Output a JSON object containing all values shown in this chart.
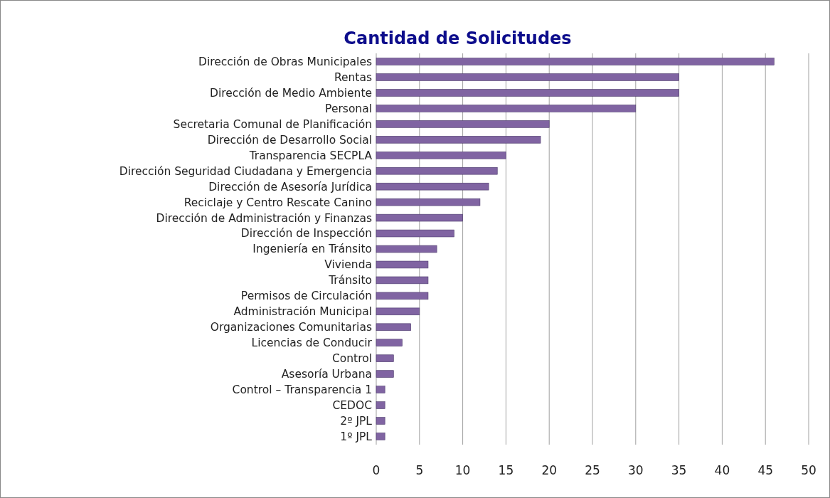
{
  "chart_data": {
    "type": "bar",
    "orientation": "horizontal",
    "title": "Cantidad de Solicitudes",
    "categories": [
      "Dirección de Obras Municipales",
      "Rentas",
      "Dirección de Medio Ambiente",
      "Personal",
      "Secretaria Comunal de Planificación",
      "Dirección de Desarrollo Social",
      "Transparencia SECPLA",
      "Dirección Seguridad Ciudadana y Emergencia",
      "Dirección de Asesoría Jurídica",
      "Reciclaje y Centro Rescate Canino",
      "Dirección de Administración y Finanzas",
      "Dirección de Inspección",
      "Ingeniería en Tránsito",
      "Vivienda",
      "Tránsito",
      "Permisos de Circulación",
      "Administración Municipal",
      "Organizaciones Comunitarias",
      "Licencias de Conducir",
      "Control",
      "Asesoría Urbana",
      "Control – Transparencia 1",
      "CEDOC",
      "2º JPL",
      "1º JPL"
    ],
    "values": [
      46,
      35,
      35,
      30,
      20,
      19,
      15,
      14,
      13,
      12,
      10,
      9,
      7,
      6,
      6,
      6,
      5,
      4,
      3,
      2,
      2,
      1,
      1,
      1,
      1
    ],
    "color": "#8064a2",
    "xlim": [
      0,
      50
    ],
    "xticks": [
      0,
      5,
      10,
      15,
      20,
      25,
      30,
      35,
      40,
      45,
      50
    ],
    "grid": "x"
  }
}
